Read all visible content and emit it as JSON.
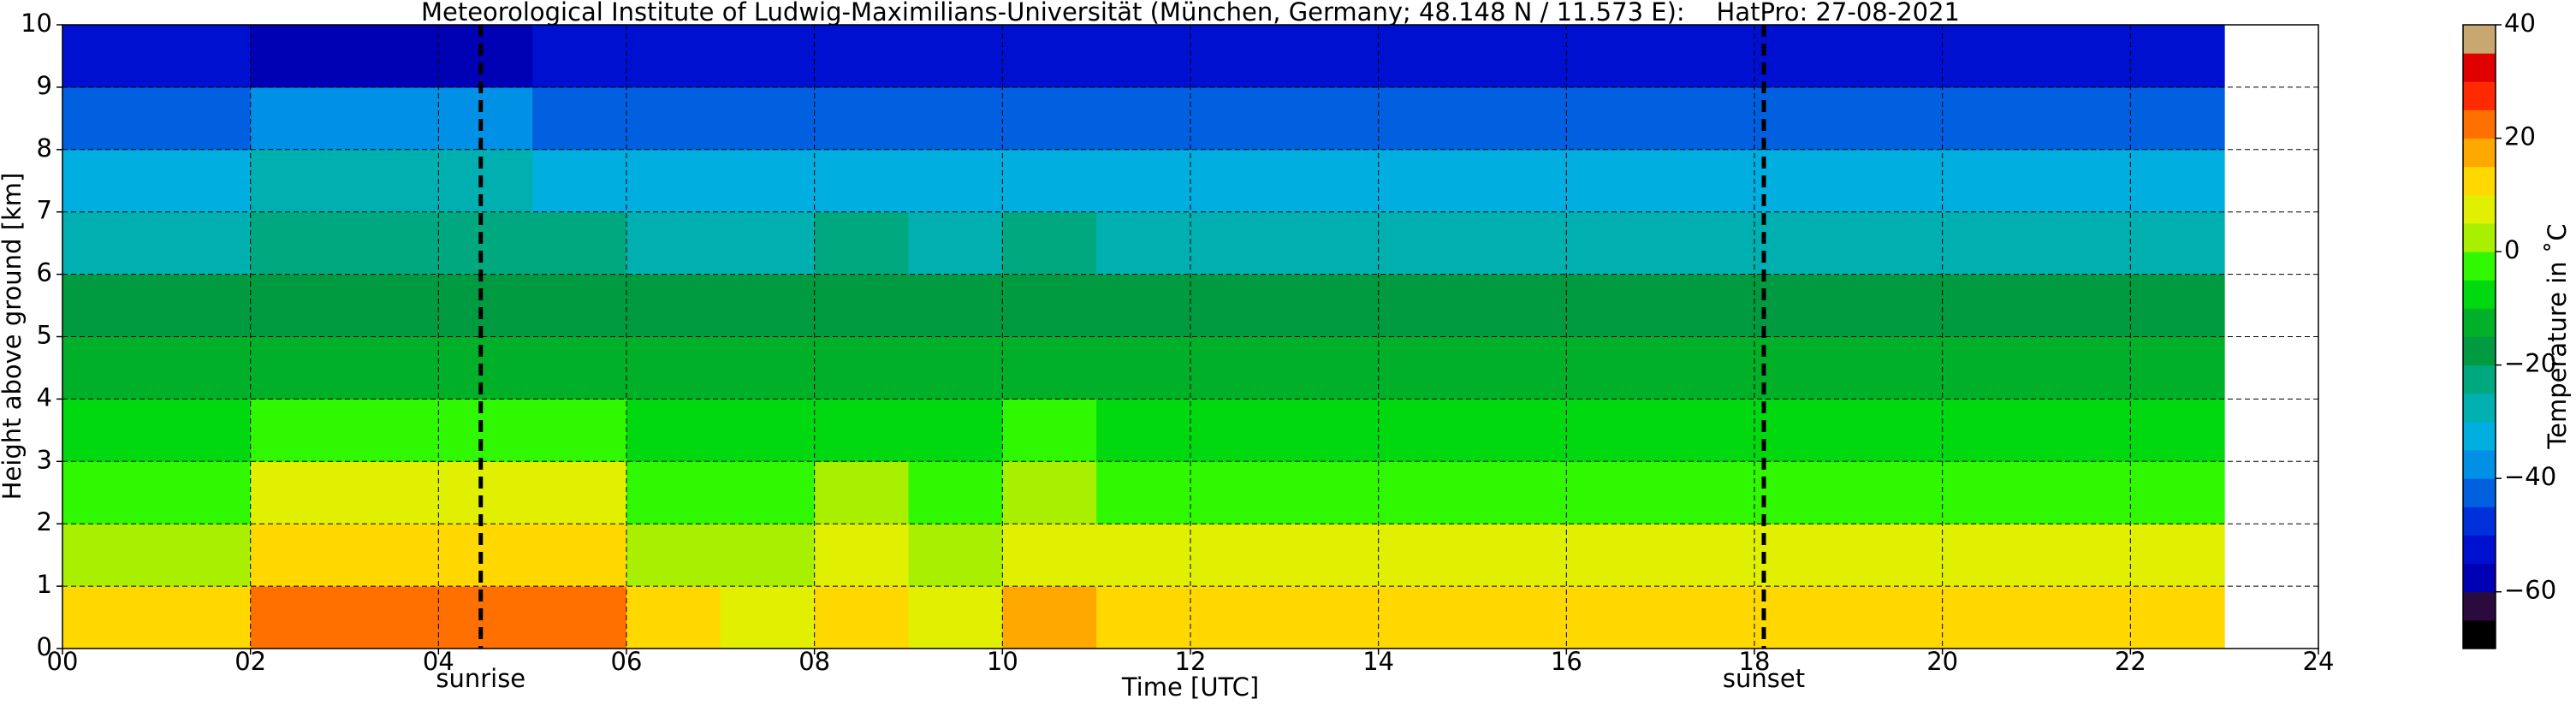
{
  "chart_data": {
    "type": "heatmap",
    "title": "Meteorological Institute of Ludwig-Maximilians-Universität (München, Germany; 48.148 N / 11.573 E):    HatPro: 27-08-2021",
    "x_label": "Time [UTC]",
    "y_label": "Height above ground [km]",
    "x": [
      0.5,
      1.5,
      2.5,
      3.5,
      4.5,
      5.5,
      6.5,
      7.5,
      8.5,
      9.5,
      10.5,
      11.5,
      12.5,
      13.5,
      14.5,
      15.5,
      16.5,
      17.5,
      18.5,
      19.5,
      20.5,
      21.5,
      22.5
    ],
    "y": [
      0.5,
      1.5,
      2.5,
      3.5,
      4.5,
      5.5,
      6.5,
      7.5,
      8.5,
      9.5
    ],
    "values": [
      [
        10,
        10,
        22,
        23,
        23,
        21,
        10,
        9,
        14,
        9,
        15,
        12,
        12,
        12,
        12,
        12,
        12,
        12,
        11,
        11,
        11,
        11,
        11
      ],
      [
        4,
        4,
        12,
        12,
        12,
        11,
        3,
        3,
        6,
        3,
        7,
        5,
        5,
        5,
        5,
        5,
        5,
        5,
        5,
        5,
        5,
        5,
        5
      ],
      [
        -3,
        -3,
        6,
        6,
        6,
        5,
        -3,
        -3,
        0,
        -3,
        1,
        -2,
        -2,
        -2,
        -2,
        -2,
        -2,
        -2,
        -2,
        -2,
        -2,
        -2,
        -2
      ],
      [
        -9,
        -9,
        -3,
        -3,
        -3,
        -4,
        -9,
        -9,
        -6,
        -9,
        -5,
        -8,
        -8,
        -8,
        -8,
        -8,
        -8,
        -8,
        -8,
        -8,
        -8,
        -8,
        -8
      ],
      [
        -15,
        -15,
        -12,
        -12,
        -12,
        -13,
        -15,
        -15,
        -13,
        -15,
        -13,
        -14,
        -14,
        -14,
        -14,
        -14,
        -14,
        -14,
        -14,
        -14,
        -14,
        -14,
        -14
      ],
      [
        -20,
        -20,
        -18,
        -18,
        -18,
        -19,
        -20,
        -20,
        -19,
        -20,
        -19,
        -20,
        -20,
        -20,
        -20,
        -20,
        -20,
        -20,
        -20,
        -20,
        -20,
        -20,
        -20
      ],
      [
        -26,
        -26,
        -24,
        -24,
        -24,
        -25,
        -26,
        -26,
        -25,
        -26,
        -25,
        -26,
        -26,
        -26,
        -26,
        -26,
        -26,
        -26,
        -26,
        -26,
        -26,
        -26,
        -26
      ],
      [
        -33,
        -33,
        -30,
        -30,
        -30,
        -31,
        -33,
        -33,
        -32,
        -33,
        -32,
        -33,
        -33,
        -33,
        -33,
        -33,
        -33,
        -33,
        -33,
        -33,
        -33,
        -33,
        -33
      ],
      [
        -42,
        -42,
        -40,
        -40,
        -40,
        -41,
        -42,
        -42,
        -42,
        -42,
        -42,
        -42,
        -42,
        -42,
        -42,
        -42,
        -42,
        -42,
        -42,
        -42,
        -42,
        -42,
        -42
      ],
      [
        -52,
        -52,
        -56,
        -56,
        -56,
        -55,
        -52,
        -52,
        -52,
        -52,
        -52,
        -52,
        -52,
        -52,
        -52,
        -52,
        -52,
        -52,
        -52,
        -52,
        -52,
        -52,
        -52
      ]
    ],
    "xlim": [
      0,
      24
    ],
    "xticks": [
      {
        "value": 0,
        "label": "00"
      },
      {
        "value": 2,
        "label": "02"
      },
      {
        "value": 4,
        "label": "04"
      },
      {
        "value": 6,
        "label": "06"
      },
      {
        "value": 8,
        "label": "08"
      },
      10,
      12,
      14,
      16,
      18,
      20,
      22,
      24
    ],
    "ylim": [
      0,
      10
    ],
    "yticks": [
      0,
      1,
      2,
      3,
      4,
      5,
      6,
      7,
      8,
      9,
      10
    ],
    "grid": true,
    "annotations": [
      {
        "label": "sunrise",
        "x": 4.45
      },
      {
        "label": "sunset",
        "x": 18.1
      }
    ],
    "colorbar": {
      "label": "Temperature in ˚C",
      "lim": [
        -70,
        40
      ],
      "levels": [
        -70,
        -65,
        -60,
        -55,
        -50,
        -45,
        -40,
        -35,
        -30,
        -25,
        -20,
        -15,
        -10,
        -5,
        0,
        5,
        10,
        15,
        20,
        25,
        30,
        35,
        40
      ],
      "colors": [
        "#000000",
        "#2b0a3d",
        "#0000b4",
        "#0010d0",
        "#0030dc",
        "#0060e0",
        "#0090e6",
        "#00aee0",
        "#00b0b0",
        "#00a880",
        "#009a40",
        "#00b028",
        "#00d810",
        "#30f800",
        "#a8f000",
        "#e0f000",
        "#ffd800",
        "#ffa800",
        "#ff7000",
        "#ff2a00",
        "#e00000",
        "#c8a870"
      ],
      "ticks": [
        {
          "value": -60,
          "label": "−60"
        },
        {
          "value": -40,
          "label": "−40"
        },
        {
          "value": -20,
          "label": "−20"
        },
        0,
        20,
        40
      ]
    }
  }
}
